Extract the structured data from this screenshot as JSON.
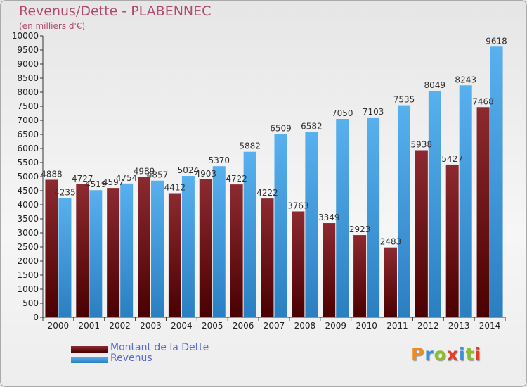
{
  "title": "Revenus/Dette - PLABENNEC",
  "subtitle": "(en milliers d'€)",
  "logo_text": "Proxiti",
  "colors": {
    "dette": "#7a1c24",
    "revenus": "#4aa3e3",
    "title": "#b14a6a",
    "legend_text": "#5a6cd0"
  },
  "chart_data": {
    "type": "bar",
    "categories": [
      "2000",
      "2001",
      "2002",
      "2003",
      "2004",
      "2005",
      "2006",
      "2007",
      "2008",
      "2009",
      "2010",
      "2011",
      "2012",
      "2013",
      "2014"
    ],
    "series": [
      {
        "name": "Montant de la Dette",
        "color": "#7a1c24",
        "values": [
          4888,
          4727,
          4597,
          4989,
          4412,
          4903,
          4722,
          4222,
          3763,
          3349,
          2923,
          2483,
          5938,
          5427,
          7468
        ],
        "labels": [
          "4888",
          "4727",
          "4597",
          "4989",
          "4412",
          "4903",
          "4722",
          "4222",
          "3763",
          "3349",
          "2923",
          "2483",
          "5938",
          "5427",
          "7468"
        ]
      },
      {
        "name": "Revenus",
        "color": "#4aa3e3",
        "values": [
          4235,
          4519,
          4754,
          4857,
          5024,
          5370,
          5882,
          6509,
          6582,
          7050,
          7103,
          7535,
          8049,
          8243,
          9618
        ],
        "labels": [
          "4235",
          "4519",
          "4754",
          "4857",
          "5024",
          "5370",
          "5882",
          "6509",
          "6582",
          "7050",
          "7103",
          "7535",
          "8049",
          "8243",
          "9618"
        ]
      }
    ],
    "ylim": [
      0,
      10000
    ],
    "ytick_step": 500,
    "grid": false,
    "legend_position": "bottom-left"
  }
}
